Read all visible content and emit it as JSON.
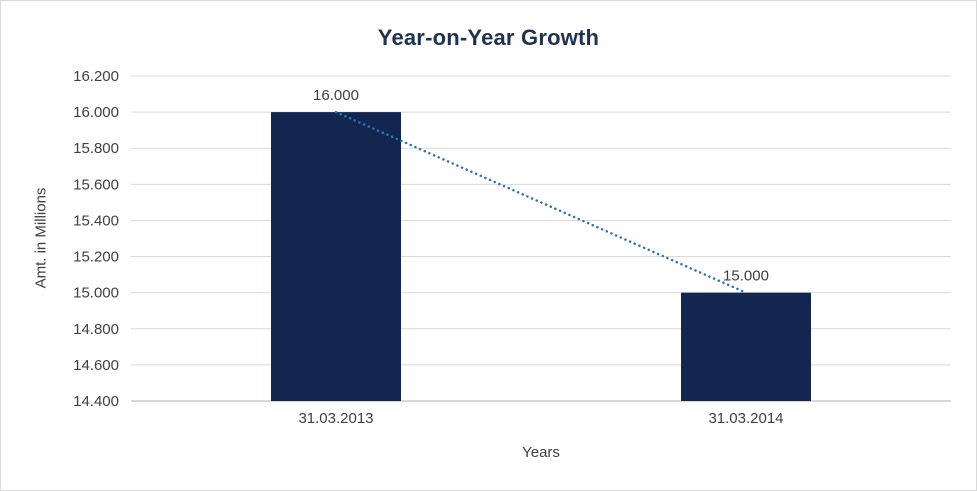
{
  "chart_data": {
    "type": "bar",
    "title": "Year-on-Year Growth",
    "xlabel": "Years",
    "ylabel": "Amt. in Millions",
    "categories": [
      "31.03.2013",
      "31.03.2014"
    ],
    "values": [
      16000,
      15000
    ],
    "data_labels": [
      "16.000",
      "15.000"
    ],
    "y_ticks": [
      "16.200",
      "16.000",
      "15.800",
      "15.600",
      "15.400",
      "15.200",
      "15.000",
      "14.800",
      "14.600",
      "14.400"
    ],
    "y_tick_values": [
      16200,
      16000,
      15800,
      15600,
      15400,
      15200,
      15000,
      14800,
      14600,
      14400
    ],
    "ylim": [
      14400,
      16200
    ],
    "grid": true,
    "legend": false,
    "trendline": true,
    "colors": {
      "bar": "#12264f",
      "trendline": "#2e75b6",
      "title": "#1f3250",
      "axis_text": "#404040",
      "gridline": "#d9d9d9",
      "axis_line": "#bfbfbf",
      "border": "#d9d9d9"
    }
  }
}
